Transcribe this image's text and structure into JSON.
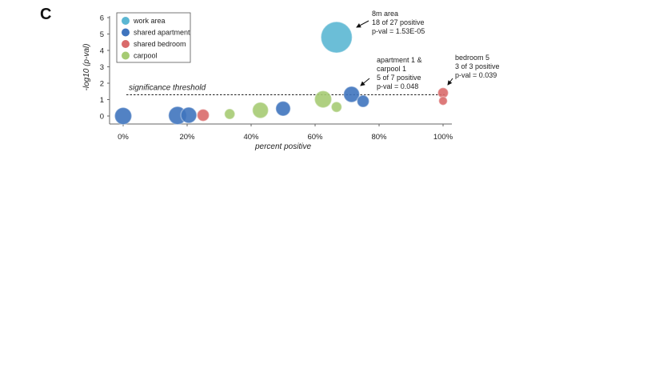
{
  "panel_label": "C",
  "chart_data": {
    "type": "scatter",
    "xlabel": "percent positive",
    "ylabel": "-log10 (p-val)",
    "xlim": [
      0,
      100
    ],
    "ylim": [
      0,
      6
    ],
    "x_ticks": [
      0,
      20,
      40,
      60,
      80,
      100
    ],
    "x_tick_labels": [
      "0%",
      "20%",
      "40%",
      "60%",
      "80%",
      "100%"
    ],
    "y_ticks": [
      0,
      1,
      2,
      3,
      4,
      5,
      6
    ],
    "y_tick_labels": [
      "0",
      "1",
      "2",
      "3",
      "4",
      "5",
      "6"
    ],
    "threshold": {
      "value": 1.3,
      "label": "significance threshold"
    },
    "legend_position": "top-left",
    "series": [
      {
        "name": "work area",
        "color": "#5bb7d3",
        "points": [
          {
            "x": 66.7,
            "y": 4.8,
            "n": 27
          }
        ]
      },
      {
        "name": "shared apartment",
        "color": "#3f74be",
        "points": [
          {
            "x": 0,
            "y": 0.0,
            "n": 8
          },
          {
            "x": 17,
            "y": 0.03,
            "n": 9
          },
          {
            "x": 20.5,
            "y": 0.05,
            "n": 7
          },
          {
            "x": 50,
            "y": 0.45,
            "n": 6
          },
          {
            "x": 71.4,
            "y": 1.32,
            "n": 7
          },
          {
            "x": 75,
            "y": 0.9,
            "n": 4
          }
        ]
      },
      {
        "name": "shared bedroom",
        "color": "#d96a6a",
        "points": [
          {
            "x": 25,
            "y": 0.05,
            "n": 4
          },
          {
            "x": 100,
            "y": 1.41,
            "n": 3
          },
          {
            "x": 100,
            "y": 0.92,
            "n": 2
          }
        ]
      },
      {
        "name": "carpool",
        "color": "#a6cb73",
        "points": [
          {
            "x": 33.3,
            "y": 0.12,
            "n": 3
          },
          {
            "x": 42.9,
            "y": 0.35,
            "n": 7
          },
          {
            "x": 62.5,
            "y": 1.02,
            "n": 8
          },
          {
            "x": 66.7,
            "y": 0.55,
            "n": 3
          }
        ]
      }
    ],
    "annotations": [
      {
        "lines": [
          "8m area",
          "18 of 27 positive",
          "p-val = 1.53E-05"
        ]
      },
      {
        "lines": [
          "apartment 1 &",
          "carpool 1",
          "5 of 7 positive",
          "p-val = 0.048"
        ]
      },
      {
        "lines": [
          "bedroom 5",
          "3 of 3 positive",
          "p-val = 0.039"
        ]
      }
    ]
  }
}
